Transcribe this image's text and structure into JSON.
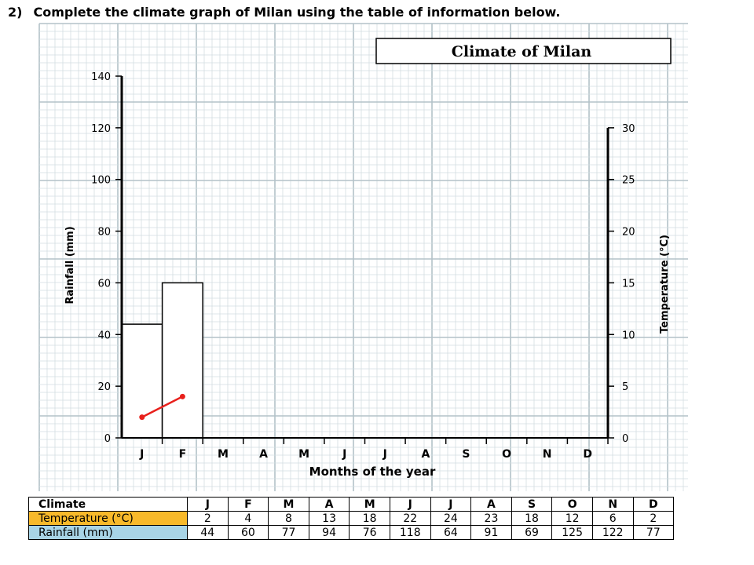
{
  "question": {
    "number": "2)",
    "text": "Complete the climate graph of Milan using the table of information below."
  },
  "chart_data": {
    "type": "bar",
    "title": "Climate of Milan",
    "xlabel": "Months of the year",
    "ylabel_left": "Rainfall (mm)",
    "ylabel_right": "Temperature (°C)",
    "categories": [
      "J",
      "F",
      "M",
      "A",
      "M",
      "J",
      "J",
      "A",
      "S",
      "O",
      "N",
      "D"
    ],
    "left_axis": {
      "min": 0,
      "max": 140,
      "ticks": [
        0,
        20,
        40,
        60,
        80,
        100,
        120,
        140
      ]
    },
    "right_axis": {
      "min": 0,
      "max": 30,
      "ticks": [
        0,
        5,
        10,
        15,
        20,
        25,
        30
      ]
    },
    "grid": true,
    "rainfall_bars_drawn": [
      44,
      60
    ],
    "temperature_line_drawn": [
      2,
      4
    ],
    "colors": {
      "line": "#e8201c",
      "grid_minor": "#d3dde1",
      "grid_major": "#b3c2c8"
    }
  },
  "table": {
    "header_label": "Climate",
    "months": [
      "J",
      "F",
      "M",
      "A",
      "M",
      "J",
      "J",
      "A",
      "S",
      "O",
      "N",
      "D"
    ],
    "temperature_label": "Temperature (°C)",
    "temperature": [
      "2",
      "4",
      "8",
      "13",
      "18",
      "22",
      "24",
      "23",
      "18",
      "12",
      "6",
      "2"
    ],
    "rainfall_label": "Rainfall (mm)",
    "rainfall": [
      "44",
      "60",
      "77",
      "94",
      "76",
      "118",
      "64",
      "91",
      "69",
      "125",
      "122",
      "77"
    ],
    "colors": {
      "temperature": "#f8b92a",
      "rainfall": "#a8d4e6"
    }
  }
}
